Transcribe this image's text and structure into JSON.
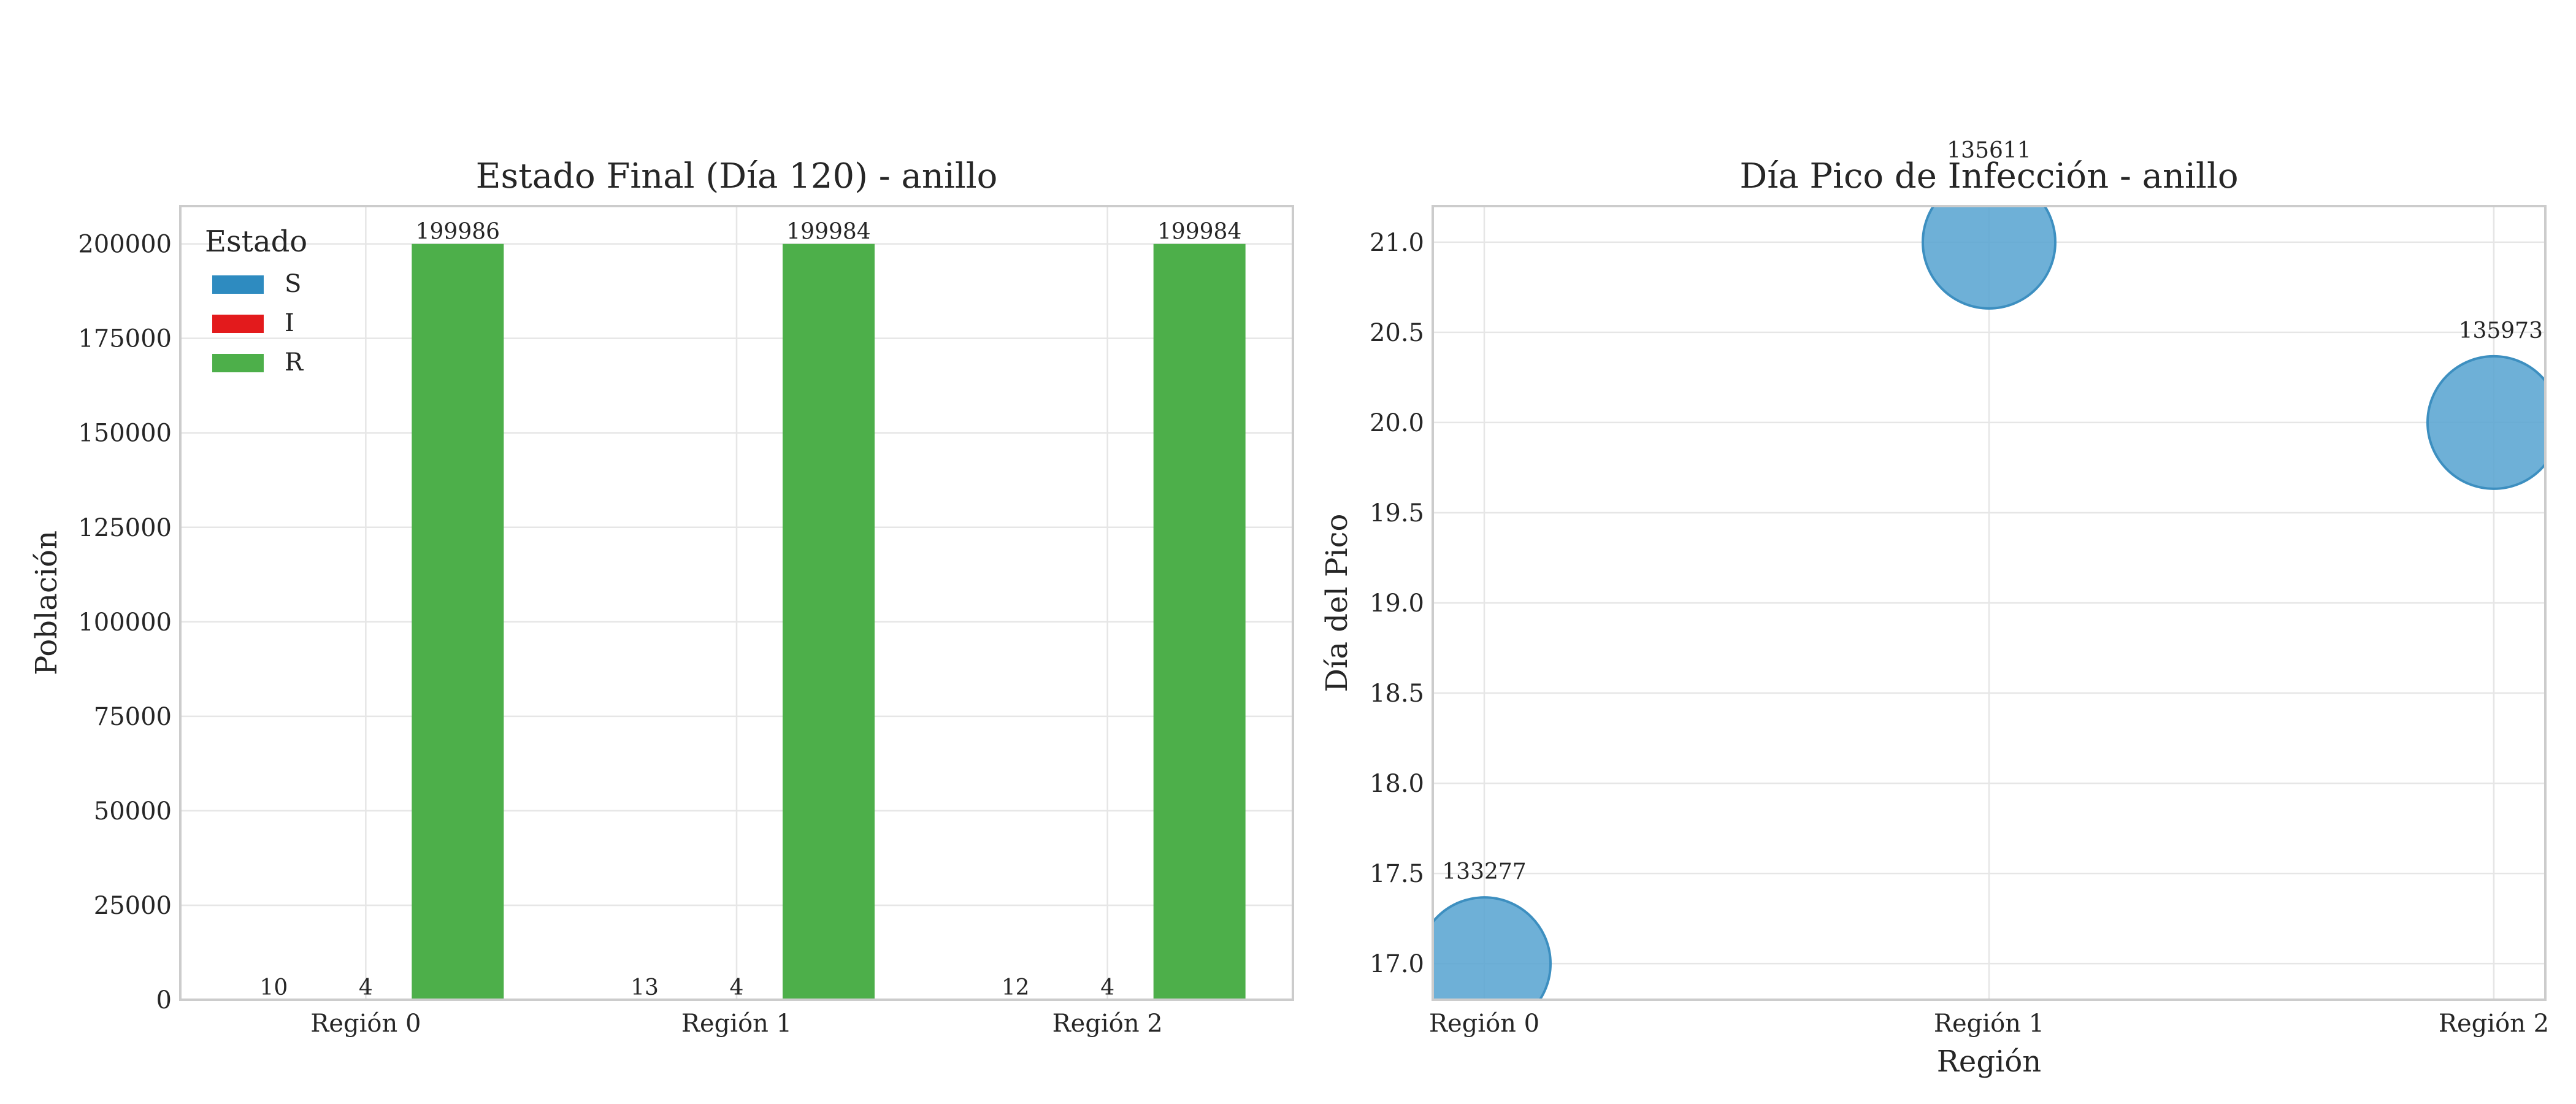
{
  "chart_data": [
    {
      "type": "bar",
      "title": "Estado Final (Día 120) - anillo",
      "xlabel": "",
      "ylabel": "Población",
      "categories": [
        "Región 0",
        "Región 1",
        "Región 2"
      ],
      "ylim": [
        0,
        210000
      ],
      "yticks": [
        0,
        25000,
        50000,
        75000,
        100000,
        125000,
        150000,
        175000,
        200000
      ],
      "ytick_labels": [
        "0",
        "25000",
        "50000",
        "75000",
        "100000",
        "125000",
        "150000",
        "175000",
        "200000"
      ],
      "legend": {
        "title": "Estado",
        "position": "top-left"
      },
      "series": [
        {
          "name": "S",
          "color": "#2e8bc0",
          "values": [
            10,
            13,
            12
          ]
        },
        {
          "name": "I",
          "color": "#e31a1c",
          "values": [
            4,
            4,
            4
          ]
        },
        {
          "name": "R",
          "color": "#4daf4a",
          "values": [
            199986,
            199984,
            199984
          ]
        }
      ],
      "grid": true
    },
    {
      "type": "scatter",
      "title": "Día Pico de Infección - anillo",
      "xlabel": "Región",
      "ylabel": "Día del Pico",
      "categories": [
        "Región 0",
        "Región 1",
        "Región 2"
      ],
      "ylim": [
        16.8,
        21.2
      ],
      "yticks": [
        17.0,
        17.5,
        18.0,
        18.5,
        19.0,
        19.5,
        20.0,
        20.5,
        21.0
      ],
      "ytick_labels": [
        "17.0",
        "17.5",
        "18.0",
        "18.5",
        "19.0",
        "19.5",
        "20.0",
        "20.5",
        "21.0"
      ],
      "color": "#5aa5d1",
      "points": [
        {
          "x": "Región 0",
          "y": 17,
          "label": "133277"
        },
        {
          "x": "Región 1",
          "y": 21,
          "label": "135611"
        },
        {
          "x": "Región 2",
          "y": 20,
          "label": "135973"
        }
      ],
      "grid": true
    }
  ]
}
